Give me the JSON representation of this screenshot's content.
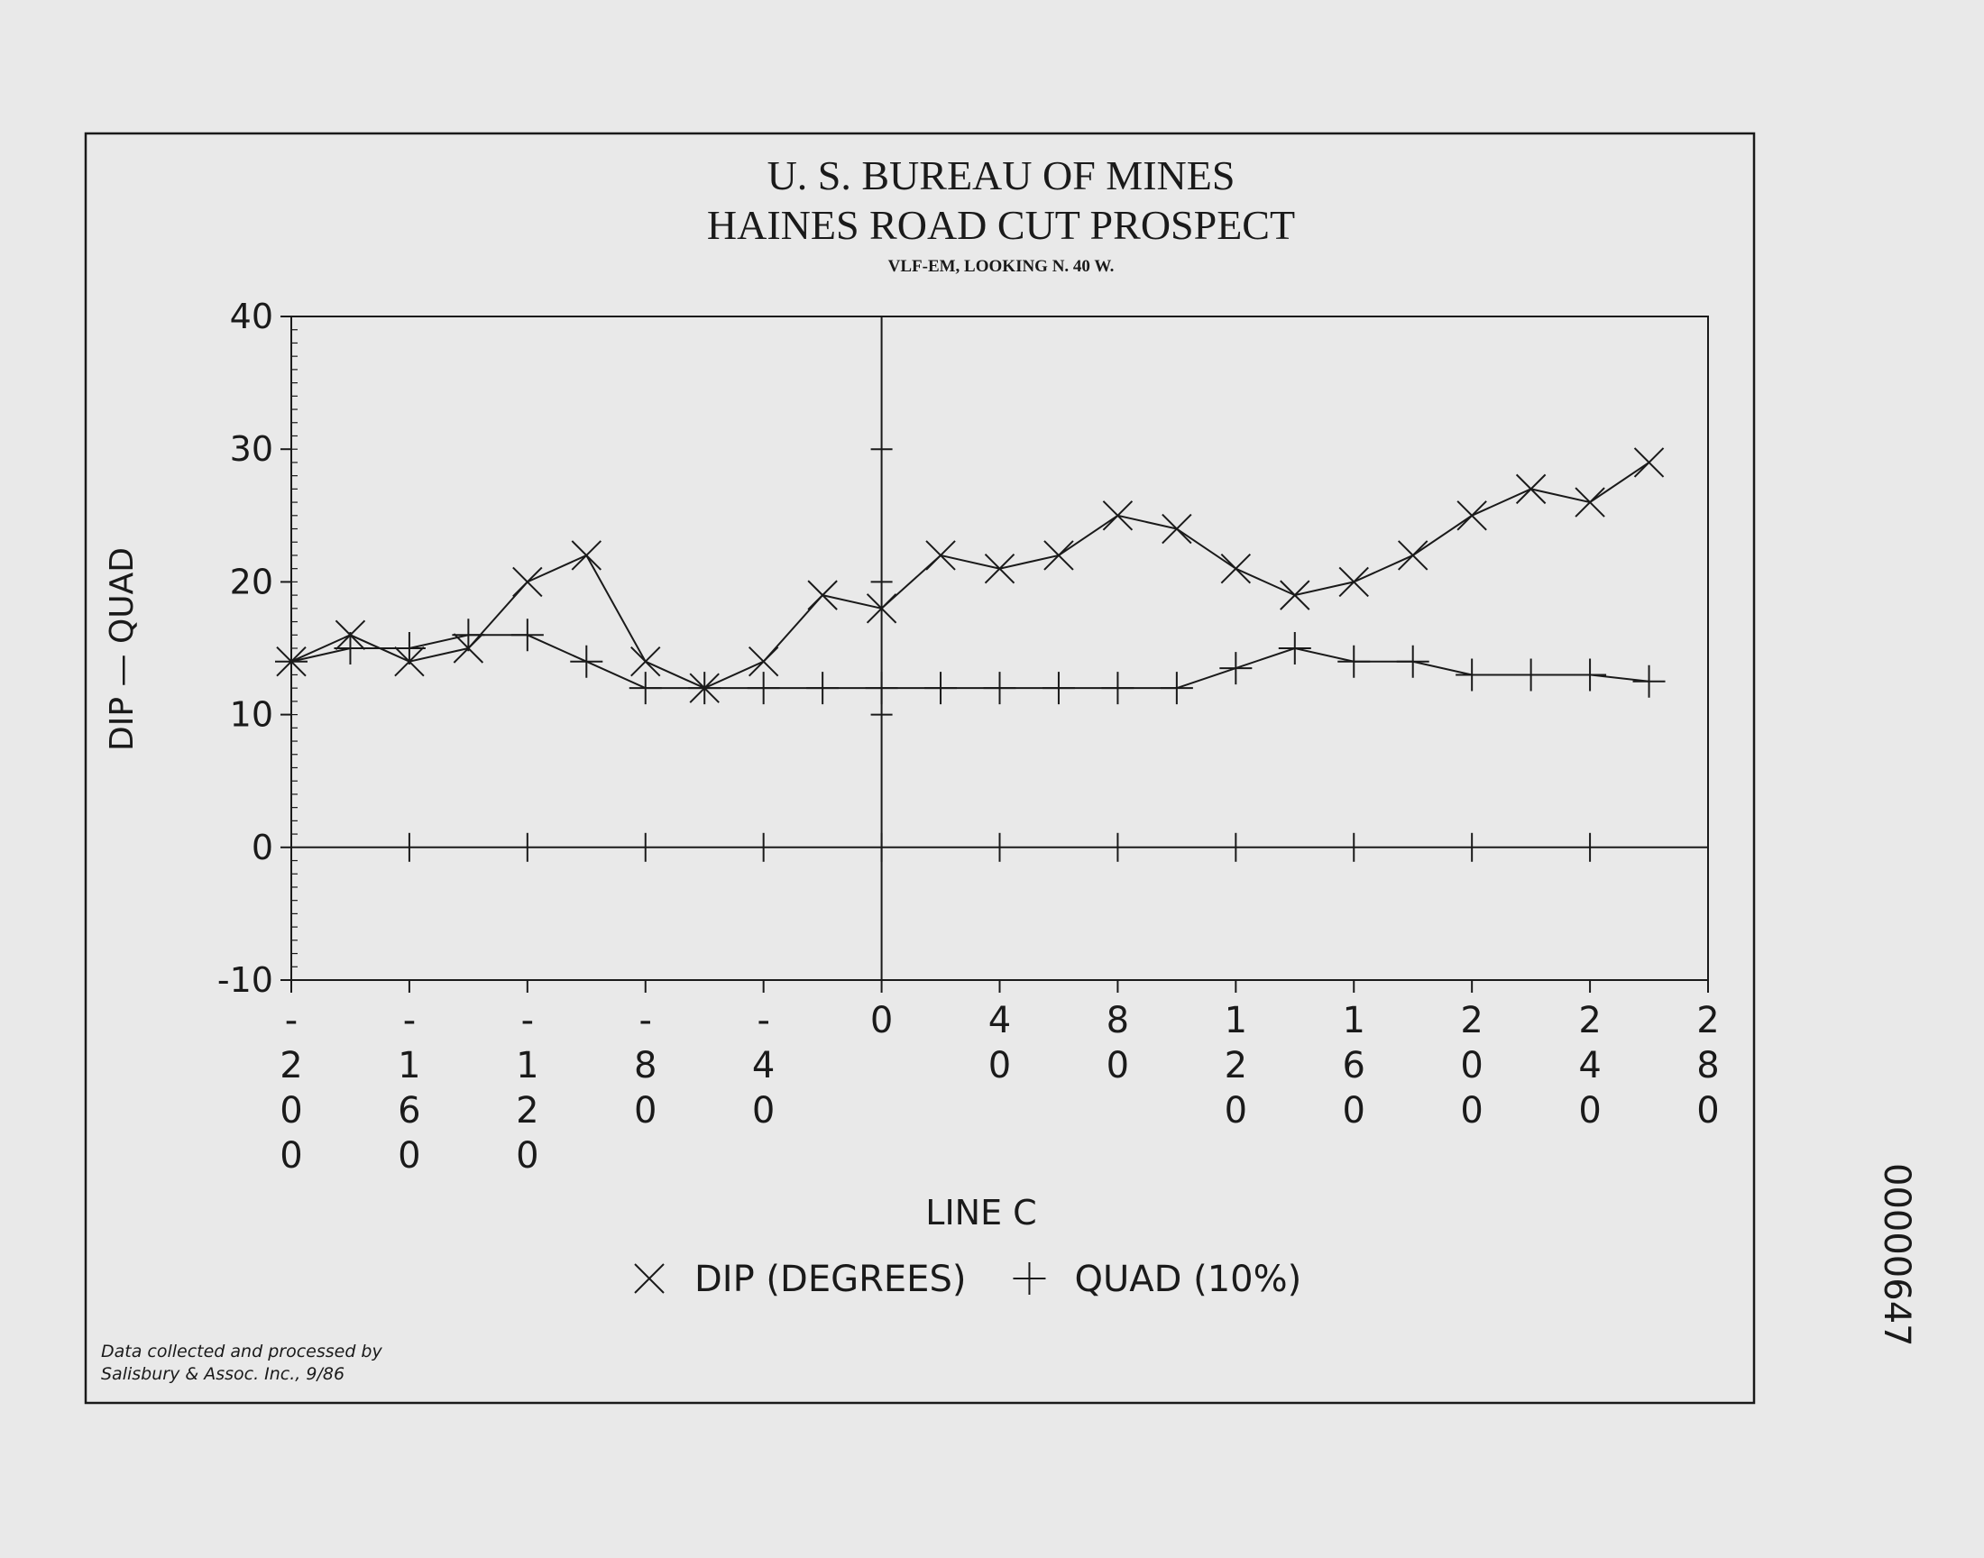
{
  "chart_data": {
    "type": "line",
    "title": "U. S. BUREAU OF MINES",
    "subtitle": "HAINES ROAD CUT PROSPECT",
    "note": "VLF-EM, LOOKING N. 40 W.",
    "ylabel": "DIP — QUAD",
    "xlabel": "LINE C",
    "credit": [
      "Data collected and processed by",
      "Salisbury & Assoc. Inc., 9/86"
    ],
    "stamp": "00000647",
    "x": [
      -200,
      -180,
      -160,
      -140,
      -120,
      -100,
      -80,
      -60,
      -40,
      -20,
      0,
      20,
      40,
      60,
      80,
      100,
      120,
      140,
      160,
      180,
      200,
      220,
      240,
      260
    ],
    "series": [
      {
        "name": "DIP (DEGREES)",
        "marker": "x",
        "color": "#1a1a1a",
        "values": [
          14,
          16,
          14,
          15,
          20,
          22,
          14,
          12,
          14,
          19,
          18,
          22,
          21,
          22,
          25,
          24,
          21,
          19,
          20,
          22,
          25,
          27,
          26,
          29
        ]
      },
      {
        "name": "QUAD (10%)",
        "marker": "+",
        "color": "#1a1a1a",
        "values": [
          14,
          15,
          15,
          16,
          16,
          14,
          12,
          12,
          12,
          12,
          12,
          12,
          12,
          12,
          12,
          12,
          13.5,
          15,
          14,
          14,
          13,
          13,
          13,
          12.5
        ]
      }
    ],
    "xlim": [
      -200,
      280
    ],
    "ylim": [
      -10,
      40
    ],
    "xticks": [
      -200,
      -160,
      -120,
      -80,
      -40,
      0,
      40,
      80,
      120,
      160,
      200,
      240,
      280
    ],
    "yticks": [
      -10,
      0,
      10,
      20,
      30,
      40
    ]
  }
}
